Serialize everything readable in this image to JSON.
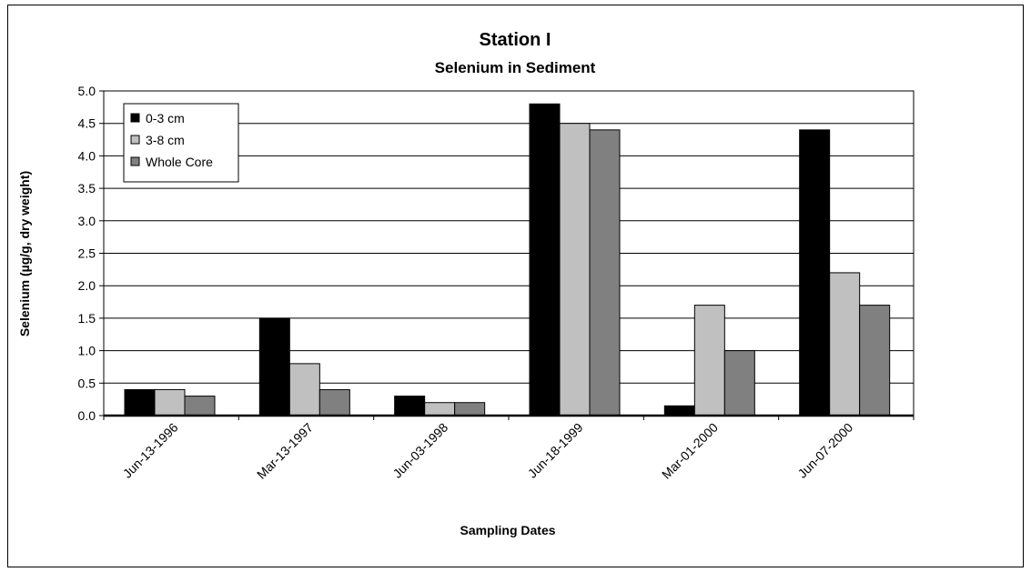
{
  "chart_data": {
    "type": "bar",
    "title": "Station I",
    "subtitle": "Selenium in Sediment",
    "xlabel": "Sampling Dates",
    "ylabel": "Selenium (µg/g, dry weight)",
    "categories": [
      "Jun-13-1996",
      "Mar-13-1997",
      "Jun-03-1998",
      "Jun-18-1999",
      "Mar-01-2000",
      "Jun-07-2000"
    ],
    "series": [
      {
        "name": "0-3 cm",
        "color": "#000000",
        "values": [
          0.4,
          1.5,
          0.3,
          4.8,
          0.15,
          4.4
        ]
      },
      {
        "name": "3-8 cm",
        "color": "#c0c0c0",
        "values": [
          0.4,
          0.8,
          0.2,
          4.5,
          1.7,
          2.2
        ]
      },
      {
        "name": "Whole Core",
        "color": "#808080",
        "values": [
          0.3,
          0.4,
          0.2,
          4.4,
          1.0,
          1.7
        ]
      }
    ],
    "ylim": [
      0,
      5
    ],
    "yticks": [
      "0.0",
      "0.5",
      "1.0",
      "1.5",
      "2.0",
      "2.5",
      "3.0",
      "3.5",
      "4.0",
      "4.5",
      "5.0"
    ],
    "grid": true,
    "legend_position": "top-left"
  }
}
